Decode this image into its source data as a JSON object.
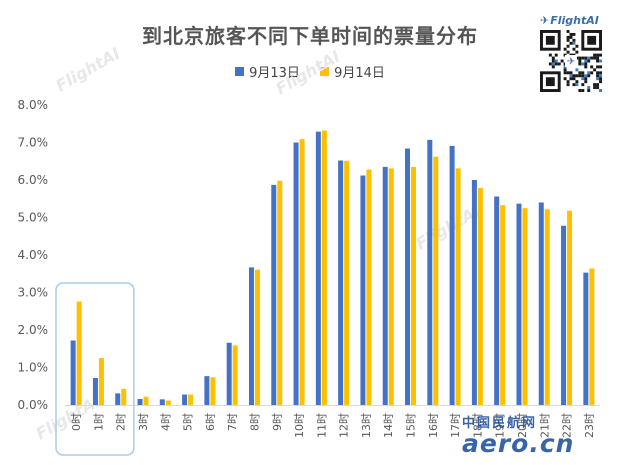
{
  "chart_data": {
    "type": "bar",
    "title": "到北京旅客不同下单时间的票量分布",
    "categories": [
      "0时",
      "1时",
      "2时",
      "3时",
      "4时",
      "5时",
      "6时",
      "7时",
      "8时",
      "9时",
      "10时",
      "11时",
      "12时",
      "13时",
      "14时",
      "15时",
      "16时",
      "17时",
      "18时",
      "19时",
      "20时",
      "21时",
      "22时",
      "23时"
    ],
    "series": [
      {
        "name": "9月13日",
        "color": "#4472C4",
        "values": [
          1.72,
          0.72,
          0.31,
          0.16,
          0.15,
          0.28,
          0.77,
          1.66,
          3.67,
          5.87,
          7.0,
          7.29,
          6.52,
          6.12,
          6.35,
          6.84,
          7.07,
          6.91,
          6.0,
          5.56,
          5.37,
          5.4,
          4.78,
          3.53
        ]
      },
      {
        "name": "9月14日",
        "color": "#FFC000",
        "values": [
          2.76,
          1.25,
          0.43,
          0.22,
          0.12,
          0.28,
          0.74,
          1.59,
          3.61,
          5.98,
          7.09,
          7.32,
          6.51,
          6.28,
          6.31,
          6.35,
          6.62,
          6.31,
          5.79,
          5.33,
          5.25,
          5.22,
          5.18,
          3.64
        ]
      }
    ],
    "ylim": [
      0,
      8
    ],
    "yticks": [
      "0.0%",
      "1.0%",
      "2.0%",
      "3.0%",
      "4.0%",
      "5.0%",
      "6.0%",
      "7.0%",
      "8.0%"
    ],
    "highlight_box": [
      "0时",
      "2时"
    ],
    "legend_position": "top-center",
    "grid": false
  },
  "branding": {
    "logo_text": "FlightAI",
    "watermark_text": "FlightAI",
    "site_cn": "中国民航网",
    "site_en": "aero.cn"
  }
}
